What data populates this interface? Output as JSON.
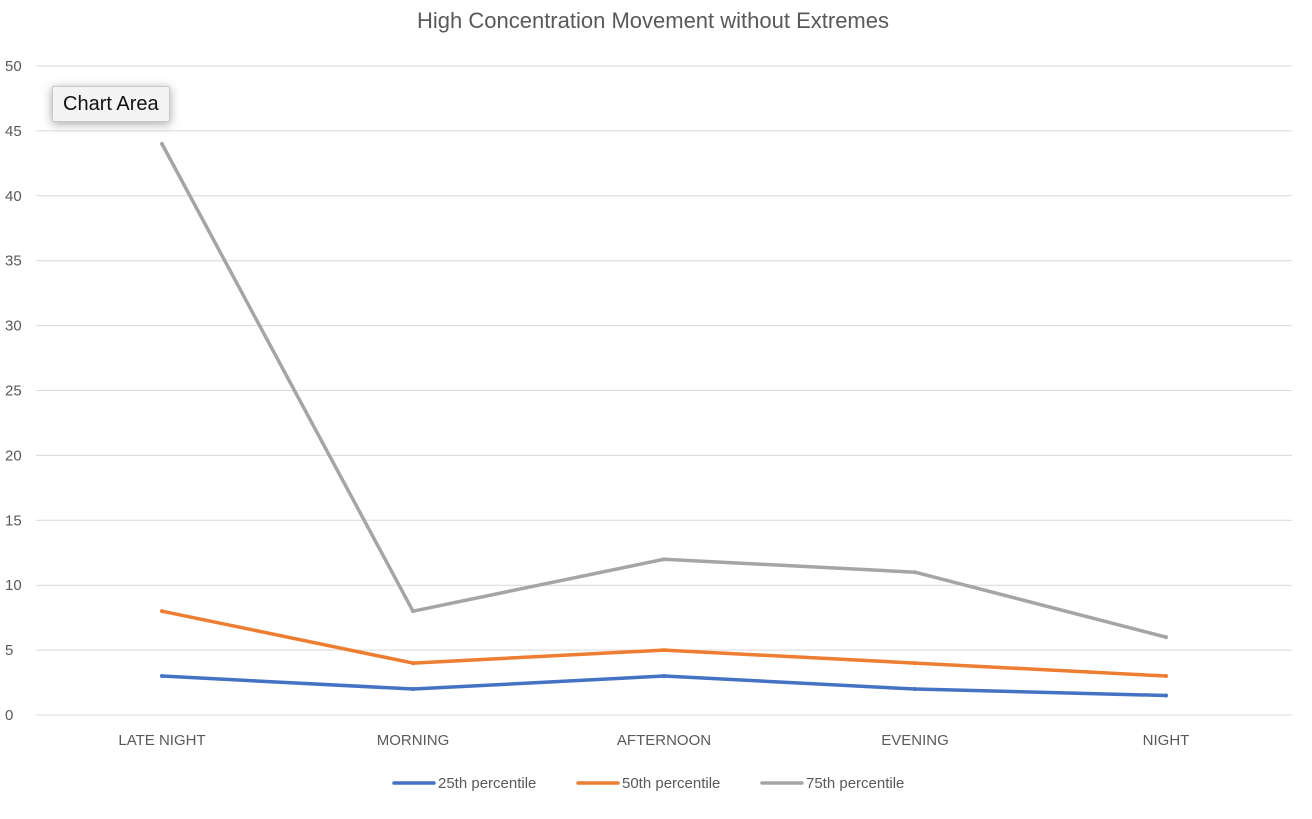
{
  "tooltip": {
    "label": "Chart Area"
  },
  "colors": {
    "grid": "#d9d9d9",
    "axis_text": "#595959",
    "title_text": "#595959"
  },
  "chart_data": {
    "type": "line",
    "title": "High Concentration Movement without Extremes",
    "xlabel": "",
    "ylabel": "",
    "categories": [
      "LATE NIGHT",
      "MORNING",
      "AFTERNOON",
      "EVENING",
      "NIGHT"
    ],
    "ylim": [
      0,
      50
    ],
    "yticks": [
      0,
      5,
      10,
      15,
      20,
      25,
      30,
      35,
      40,
      45,
      50
    ],
    "grid": true,
    "legend_position": "bottom",
    "series": [
      {
        "name": "25th percentile",
        "color": "#4472c4",
        "values": [
          3,
          2,
          3,
          2,
          1.5
        ]
      },
      {
        "name": "50th percentile",
        "color": "#ed7d31",
        "values": [
          8,
          4,
          5,
          4,
          3
        ]
      },
      {
        "name": "75th percentile",
        "color": "#a5a5a5",
        "values": [
          44,
          8,
          12,
          11,
          6
        ]
      }
    ]
  }
}
